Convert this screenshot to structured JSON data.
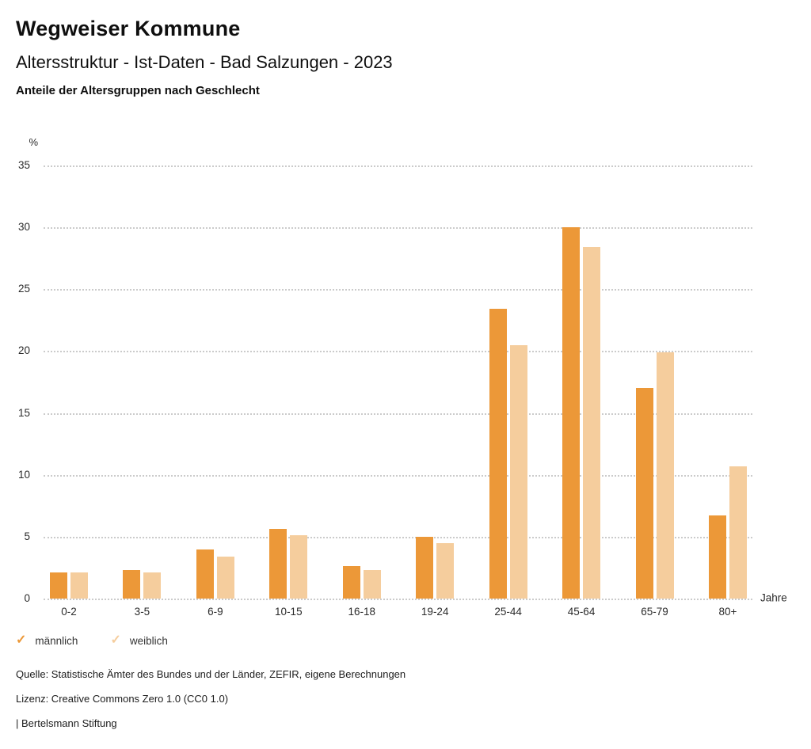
{
  "header": {
    "title": "Wegweiser Kommune",
    "subtitle": "Altersstruktur - Ist-Daten - Bad Salzungen - 2023"
  },
  "chart_data": {
    "type": "bar",
    "title": "Anteile der Altersgruppen nach Geschlecht",
    "unit_label": "%",
    "xlabel": "Jahre",
    "categories": [
      "0-2",
      "3-5",
      "6-9",
      "10-15",
      "16-18",
      "19-24",
      "25-44",
      "45-64",
      "65-79",
      "80+"
    ],
    "series": [
      {
        "name": "männlich",
        "color": "#EC9838",
        "values": [
          2.1,
          2.3,
          4.0,
          5.6,
          2.6,
          5.0,
          23.4,
          30.0,
          17.0,
          6.7
        ]
      },
      {
        "name": "weiblich",
        "color": "#F5CD9D",
        "values": [
          2.1,
          2.1,
          3.4,
          5.1,
          2.3,
          4.5,
          20.5,
          28.4,
          19.9,
          10.7
        ]
      }
    ],
    "ylim": [
      0,
      35
    ],
    "yticks": [
      35,
      30,
      25,
      20,
      15,
      10,
      5,
      0
    ],
    "grid": "dotted-horizontal",
    "legend_position": "bottom-left",
    "legend_icon": "check"
  },
  "footer": {
    "source": "Quelle: Statistische Ämter des Bundes und der Länder, ZEFIR, eigene Berechnungen",
    "license": "Lizenz: Creative Commons Zero 1.0 (CC0 1.0)",
    "branding": "| Bertelsmann Stiftung"
  }
}
